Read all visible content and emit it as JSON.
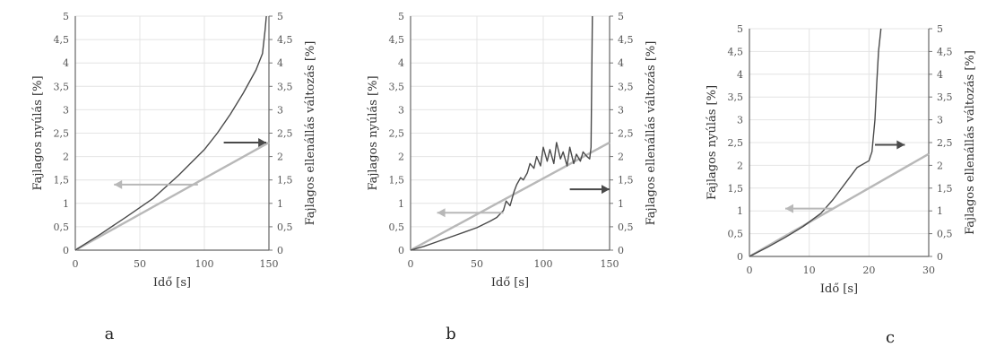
{
  "chart_data": [
    {
      "type": "line",
      "panel_label": "a",
      "xlabel": "Idő [s]",
      "ylabel_left": "Fajlagos nyúlás [%]",
      "ylabel_right": "Fajlagos ellenállás változás [%]",
      "xlim": [
        0,
        150
      ],
      "ylim_left": [
        0,
        5
      ],
      "ylim_right": [
        0,
        5
      ],
      "x_ticks": [
        "0",
        "50",
        "100",
        "150"
      ],
      "y_ticks_left": [
        "0",
        "0,5",
        "1",
        "1,5",
        "2",
        "2,5",
        "3",
        "3,5",
        "4",
        "4,5",
        "5"
      ],
      "y_ticks_right": [
        "0",
        "0,5",
        "1",
        "1,5",
        "2",
        "2,5",
        "3",
        "3,5",
        "4",
        "4,5",
        "5"
      ],
      "grid": true,
      "series": [
        {
          "axis": "left",
          "color": "#b8b8b8",
          "x": [
            0,
            150
          ],
          "y": [
            0,
            2.3
          ]
        },
        {
          "axis": "right",
          "color": "#4a4a4a",
          "x": [
            0,
            20,
            40,
            60,
            80,
            100,
            110,
            120,
            130,
            140,
            145,
            147,
            148
          ],
          "y": [
            0,
            0.35,
            0.72,
            1.1,
            1.6,
            2.15,
            2.5,
            2.9,
            3.35,
            3.85,
            4.2,
            4.7,
            5.0
          ]
        }
      ],
      "arrows": [
        {
          "direction": "left",
          "color": "#b8b8b8",
          "x_from": 95,
          "x_to": 30,
          "y": 1.4
        },
        {
          "direction": "right",
          "color": "#4a4a4a",
          "x_from": 115,
          "x_to": 148,
          "y": 2.3
        }
      ]
    },
    {
      "type": "line",
      "panel_label": "b",
      "xlabel": "Idő [s]",
      "ylabel_left": "Fajlagos nyúlás [%]",
      "ylabel_right": "Fajlagos ellenállás változás [%]",
      "xlim": [
        0,
        150
      ],
      "ylim_left": [
        0,
        5
      ],
      "ylim_right": [
        0,
        5
      ],
      "x_ticks": [
        "0",
        "50",
        "100",
        "150"
      ],
      "y_ticks_left": [
        "0",
        "0,5",
        "1",
        "1,5",
        "2",
        "2,5",
        "3",
        "3,5",
        "4",
        "4,5",
        "5"
      ],
      "y_ticks_right": [
        "0",
        "0,5",
        "1",
        "1,5",
        "2",
        "2,5",
        "3",
        "3,5",
        "4",
        "4,5",
        "5"
      ],
      "grid": true,
      "series": [
        {
          "axis": "left",
          "color": "#b8b8b8",
          "x": [
            0,
            150
          ],
          "y": [
            0,
            2.3
          ]
        },
        {
          "axis": "right",
          "color": "#4a4a4a",
          "x": [
            0,
            10,
            20,
            30,
            40,
            50,
            55,
            60,
            65,
            70,
            72,
            75,
            78,
            80,
            83,
            85,
            88,
            90,
            93,
            95,
            98,
            100,
            103,
            105,
            108,
            110,
            113,
            115,
            118,
            120,
            123,
            125,
            128,
            130,
            133,
            135,
            136,
            137
          ],
          "y": [
            0,
            0.08,
            0.18,
            0.28,
            0.38,
            0.48,
            0.55,
            0.62,
            0.7,
            0.85,
            1.05,
            0.95,
            1.25,
            1.4,
            1.55,
            1.5,
            1.65,
            1.85,
            1.75,
            2.0,
            1.8,
            2.2,
            1.9,
            2.15,
            1.85,
            2.3,
            1.95,
            2.1,
            1.8,
            2.2,
            1.85,
            2.05,
            1.9,
            2.1,
            2.0,
            1.95,
            2.2,
            5.0
          ]
        }
      ],
      "arrows": [
        {
          "direction": "left",
          "color": "#b8b8b8",
          "x_from": 70,
          "x_to": 20,
          "y": 0.8
        },
        {
          "direction": "right",
          "color": "#4a4a4a",
          "x_from": 120,
          "x_to": 150,
          "y": 1.3
        }
      ]
    },
    {
      "type": "line",
      "panel_label": "c",
      "xlabel": "Idő [s]",
      "ylabel_left": "Fajlagos nyúlás [%]",
      "ylabel_right": "Fajlagos ellenállás változás [%]",
      "xlim": [
        0,
        30
      ],
      "ylim_left": [
        0,
        5
      ],
      "ylim_right": [
        0,
        5
      ],
      "x_ticks": [
        "0",
        "10",
        "20",
        "30"
      ],
      "y_ticks_left": [
        "0",
        "0,5",
        "1",
        "1,5",
        "2",
        "2,5",
        "3",
        "3,5",
        "4",
        "4,5",
        "5"
      ],
      "y_ticks_right": [
        "0",
        "0,5",
        "1",
        "1,5",
        "2",
        "2,5",
        "3",
        "3,5",
        "4",
        "4,5",
        "5"
      ],
      "grid": true,
      "series": [
        {
          "axis": "left",
          "color": "#b8b8b8",
          "x": [
            0,
            30
          ],
          "y": [
            0,
            2.25
          ]
        },
        {
          "axis": "right",
          "color": "#4a4a4a",
          "x": [
            0,
            3,
            6,
            9,
            12,
            14,
            16,
            18,
            20,
            20.5,
            21,
            21.3,
            21.6,
            22
          ],
          "y": [
            0,
            0.2,
            0.42,
            0.66,
            0.95,
            1.25,
            1.6,
            1.95,
            2.1,
            2.3,
            3.0,
            3.8,
            4.5,
            5.0
          ]
        }
      ],
      "arrows": [
        {
          "direction": "left",
          "color": "#b8b8b8",
          "x_from": 14,
          "x_to": 6,
          "y": 1.05
        },
        {
          "direction": "right",
          "color": "#4a4a4a",
          "x_from": 21,
          "x_to": 26,
          "y": 2.45
        }
      ]
    }
  ]
}
